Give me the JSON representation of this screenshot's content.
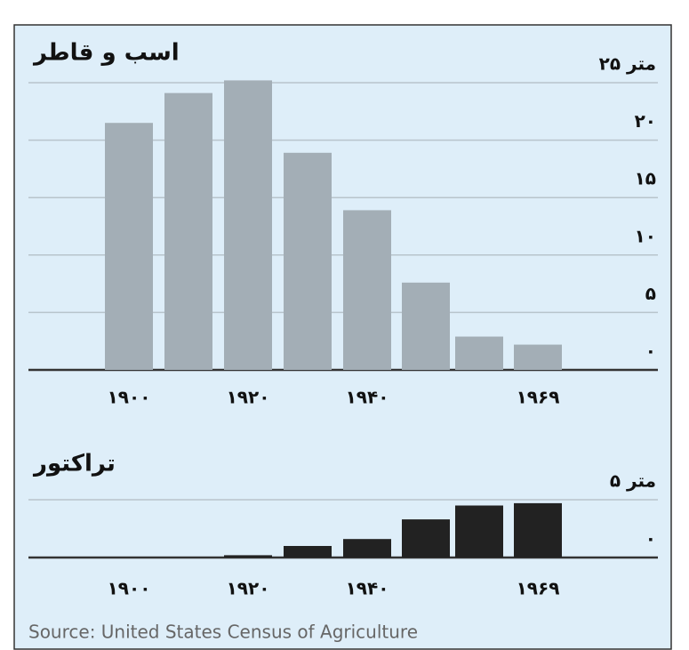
{
  "chart_data": [
    {
      "type": "bar",
      "title": "اسب و قاطر",
      "categories": [
        "۱۹۰۰",
        null,
        "۱۹۲۰",
        null,
        "۱۹۴۰",
        null,
        null,
        "۱۹۶۹"
      ],
      "values": [
        21.5,
        24.1,
        25.2,
        18.9,
        13.9,
        7.6,
        2.9,
        2.2
      ],
      "color": "#a3aeb6",
      "ylim": [
        0,
        25
      ],
      "yticks": [
        {
          "value": 0,
          "label": "۰"
        },
        {
          "value": 5,
          "label": "۵"
        },
        {
          "value": 10,
          "label": "۱۰"
        },
        {
          "value": 15,
          "label": "۱۵"
        },
        {
          "value": 20,
          "label": "۲۰"
        },
        {
          "value": 25,
          "label": "۲۵ متر"
        }
      ],
      "grid": true
    },
    {
      "type": "bar",
      "title": "تراکتور",
      "categories": [
        "۱۹۰۰",
        null,
        "۱۹۲۰",
        null,
        "۱۹۴۰",
        null,
        null,
        "۱۹۶۹"
      ],
      "values": [
        0,
        0,
        0.2,
        1.0,
        1.6,
        3.3,
        4.5,
        4.7
      ],
      "color": "#222222",
      "ylim": [
        0,
        5
      ],
      "yticks": [
        {
          "value": 0,
          "label": "۰"
        },
        {
          "value": 5,
          "label": "۵ متر"
        }
      ],
      "grid": true
    }
  ],
  "source": "Source: United States Census of Agriculture"
}
